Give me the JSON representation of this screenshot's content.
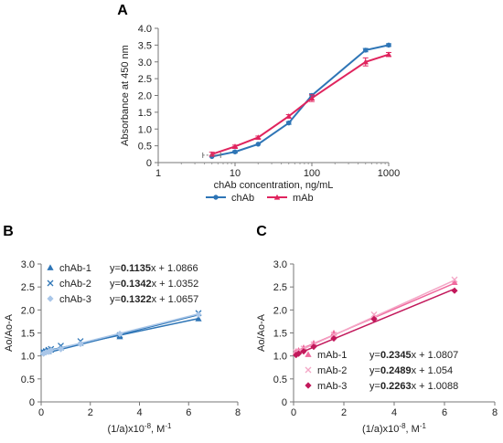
{
  "chart_data": [
    {
      "id": "A",
      "type": "line",
      "panel_label": "A",
      "xlabel": "chAb concentration, ng/mL",
      "ylabel": "Absorbance at 450 nm",
      "xscale": "log",
      "xlim": [
        1,
        1000
      ],
      "ylim": [
        0,
        4.0
      ],
      "xticks": [
        1,
        10,
        100,
        1000
      ],
      "xtick_labels": [
        "1",
        "10",
        "100",
        "1000"
      ],
      "yticks": [
        0,
        0.5,
        1.0,
        1.5,
        2.0,
        2.5,
        3.0,
        3.5,
        4.0
      ],
      "ytick_labels": [
        "0",
        "0.5",
        "1.0",
        "1.5",
        "2.0",
        "2.5",
        "3.0",
        "3.5",
        "4.0"
      ],
      "legend_position": "bottom",
      "series": [
        {
          "name": "chAb",
          "color": "#2e75b6",
          "marker": "circle",
          "x": [
            5,
            10,
            20,
            50,
            100,
            500,
            1000
          ],
          "y": [
            0.18,
            0.32,
            0.55,
            1.18,
            2.0,
            3.35,
            3.5
          ],
          "err": [
            0,
            0.03,
            0,
            0.04,
            0.05,
            0.05,
            0.04
          ]
        },
        {
          "name": "mAb",
          "color": "#e0245e",
          "marker": "triangle",
          "x": [
            5,
            10,
            20,
            50,
            100,
            500,
            1000
          ],
          "y": [
            0.25,
            0.48,
            0.75,
            1.38,
            1.92,
            3.0,
            3.22
          ],
          "err": [
            0.06,
            0.04,
            0.04,
            0.05,
            0.1,
            0.12,
            0.06
          ]
        }
      ]
    },
    {
      "id": "B",
      "type": "scatter",
      "panel_label": "B",
      "xlabel": "(1/a)x10",
      "xlabel_sup": "-8",
      "xlabel_unit": ", M",
      "xlabel_unit_sup": "-1",
      "ylabel": "Ao/Ao-A",
      "xlim": [
        0,
        8
      ],
      "ylim": [
        0,
        3.0
      ],
      "xticks": [
        0,
        2,
        4,
        6,
        8
      ],
      "xtick_labels": [
        "0",
        "2",
        "4",
        "6",
        "8"
      ],
      "yticks": [
        0,
        0.5,
        1.0,
        1.5,
        2.0,
        2.5,
        3.0
      ],
      "ytick_labels": [
        "0",
        "0.5",
        "1.0",
        "1.5",
        "2.0",
        "2.5",
        "3.0"
      ],
      "legend_position": "top-left",
      "series": [
        {
          "name": "chAb-1",
          "color": "#2e75b6",
          "marker": "triangle",
          "x": [
            0.1,
            0.2,
            0.3,
            0.4,
            0.8,
            1.6,
            3.2,
            6.4
          ],
          "y": [
            1.1,
            1.12,
            1.1,
            1.13,
            1.18,
            1.28,
            1.42,
            1.81
          ],
          "slope": 0.1135,
          "intercept": 1.0866,
          "eq_prefix": "y=",
          "eq_slope": "0.1135",
          "eq_suffix": "x + 1.0866"
        },
        {
          "name": "chAb-2",
          "color": "#2e75b6",
          "marker": "x",
          "x": [
            0.1,
            0.2,
            0.3,
            0.4,
            0.8,
            1.6,
            3.2,
            6.4
          ],
          "y": [
            1.08,
            1.1,
            1.13,
            1.15,
            1.22,
            1.32,
            1.45,
            1.93
          ],
          "slope": 0.1342,
          "intercept": 1.0352,
          "eq_prefix": "y=",
          "eq_slope": "0.1342",
          "eq_suffix": "x + 1.0352"
        },
        {
          "name": "chAb-3",
          "color": "#a9c6e8",
          "marker": "diamond",
          "x": [
            0.1,
            0.2,
            0.3,
            0.4,
            0.8,
            1.6,
            3.2,
            6.4
          ],
          "y": [
            1.05,
            1.08,
            1.09,
            1.12,
            1.15,
            1.26,
            1.48,
            1.9
          ],
          "slope": 0.1322,
          "intercept": 1.0657,
          "eq_prefix": "y=",
          "eq_slope": "0.1322",
          "eq_suffix": "x + 1.0657"
        }
      ]
    },
    {
      "id": "C",
      "type": "scatter",
      "panel_label": "C",
      "xlabel": "(1/a)x10",
      "xlabel_sup": "-8",
      "xlabel_unit": ", M",
      "xlabel_unit_sup": "-1",
      "ylabel": "Ao/Ao-A",
      "xlim": [
        0,
        8
      ],
      "ylim": [
        0,
        3.0
      ],
      "xticks": [
        0,
        2,
        4,
        6,
        8
      ],
      "xtick_labels": [
        "0",
        "2",
        "4",
        "6",
        "8"
      ],
      "yticks": [
        0,
        0.5,
        1.0,
        1.5,
        2.0,
        2.5,
        3.0
      ],
      "ytick_labels": [
        "0",
        "0.5",
        "1.0",
        "1.5",
        "2.0",
        "2.5",
        "3.0"
      ],
      "legend_position": "bottom-right",
      "series": [
        {
          "name": "mAb-1",
          "color": "#f06a9e",
          "marker": "triangle",
          "x": [
            0.1,
            0.2,
            0.4,
            0.8,
            1.6,
            3.2,
            6.4
          ],
          "y": [
            1.1,
            1.12,
            1.18,
            1.28,
            1.5,
            1.86,
            2.6
          ],
          "slope": 0.2345,
          "intercept": 1.0807,
          "eq_prefix": "y=",
          "eq_slope": "0.2345",
          "eq_suffix": "x + 1.0807"
        },
        {
          "name": "mAb-2",
          "color": "#f4a6c6",
          "marker": "x",
          "x": [
            0.1,
            0.2,
            0.4,
            0.8,
            1.6,
            3.2,
            6.4
          ],
          "y": [
            1.08,
            1.1,
            1.16,
            1.25,
            1.46,
            1.9,
            2.66
          ],
          "slope": 0.2489,
          "intercept": 1.054,
          "eq_prefix": "y=",
          "eq_slope": "0.2489",
          "eq_suffix": "x + 1.054"
        },
        {
          "name": "mAb-3",
          "color": "#c2185b",
          "marker": "diamond",
          "x": [
            0.1,
            0.2,
            0.4,
            0.8,
            1.6,
            3.2,
            6.4
          ],
          "y": [
            1.02,
            1.05,
            1.1,
            1.2,
            1.38,
            1.8,
            2.42
          ],
          "slope": 0.2263,
          "intercept": 1.0088,
          "eq_prefix": "y=",
          "eq_slope": "0.2263",
          "eq_suffix": "x + 1.0088"
        }
      ]
    }
  ]
}
